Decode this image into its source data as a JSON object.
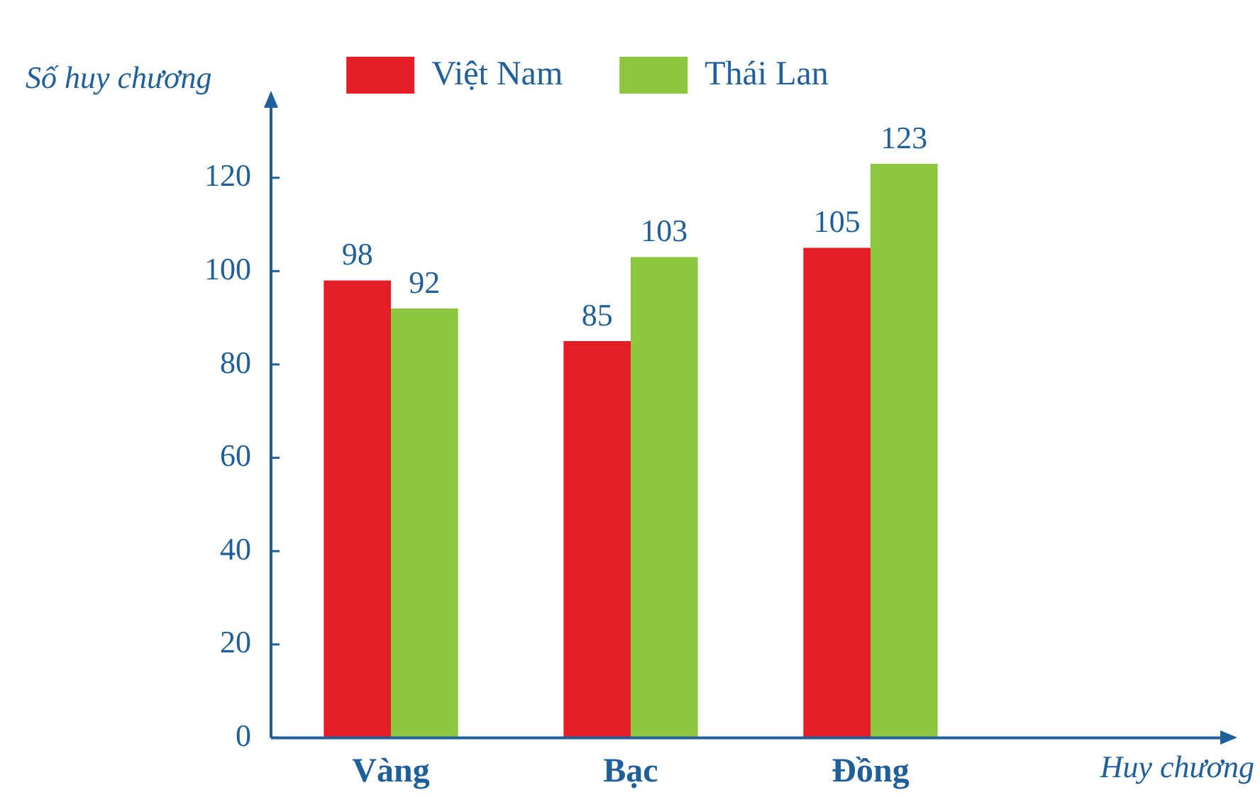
{
  "chart_data": {
    "type": "bar",
    "xlabel": "Huy chương",
    "ylabel": "Số huy chương",
    "categories": [
      "Vàng",
      "Bạc",
      "Đồng"
    ],
    "series": [
      {
        "name": "Việt Nam",
        "color": "#e31e24",
        "values": [
          98,
          85,
          105
        ]
      },
      {
        "name": "Thái Lan",
        "color": "#8dc63f",
        "values": [
          92,
          103,
          123
        ]
      }
    ],
    "ylim": [
      0,
      135
    ],
    "yticks": [
      0,
      20,
      40,
      60,
      80,
      100,
      120
    ],
    "grid": false,
    "legend": "top",
    "data_labels": true
  }
}
